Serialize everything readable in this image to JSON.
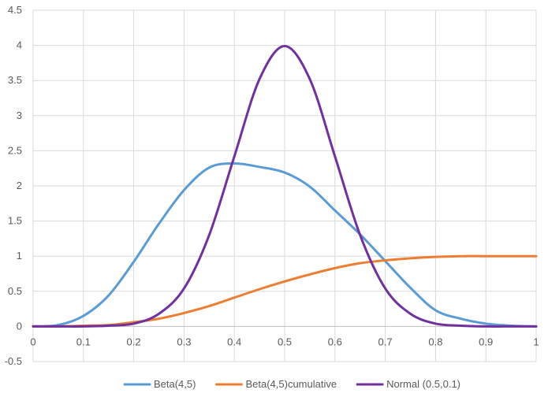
{
  "chart_data": {
    "type": "line",
    "title": "",
    "xlabel": "",
    "ylabel": "",
    "xlim": [
      0,
      1
    ],
    "ylim": [
      -0.5,
      4.5
    ],
    "x_ticks": [
      0,
      0.1,
      0.2,
      0.3,
      0.4,
      0.5,
      0.6,
      0.7,
      0.8,
      0.9,
      1
    ],
    "x_tick_labels": [
      "0",
      "0.1",
      "0.2",
      "0.3",
      "0.4",
      "0.5",
      "0.6",
      "0.7",
      "0.8",
      "0.9",
      "1"
    ],
    "y_ticks": [
      -0.5,
      0,
      0.5,
      1,
      1.5,
      2,
      2.5,
      3,
      3.5,
      4,
      4.5
    ],
    "y_tick_labels": [
      "-0.5",
      "0",
      "0.5",
      "1",
      "1.5",
      "2",
      "2.5",
      "3",
      "3.5",
      "4",
      "4.5"
    ],
    "grid": true,
    "legend_position": "bottom",
    "x": [
      0,
      0.05,
      0.1,
      0.15,
      0.2,
      0.25,
      0.3,
      0.35,
      0.4,
      0.45,
      0.5,
      0.55,
      0.6,
      0.65,
      0.7,
      0.75,
      0.8,
      0.85,
      0.9,
      0.95,
      1
    ],
    "series": [
      {
        "name": "Beta(4,5)",
        "color": "#5b9bd5",
        "values": [
          0,
          0.02,
          0.15,
          0.44,
          0.92,
          1.46,
          1.94,
          2.26,
          2.32,
          2.27,
          2.19,
          1.99,
          1.65,
          1.31,
          0.93,
          0.55,
          0.23,
          0.11,
          0.04,
          0.01,
          0
        ]
      },
      {
        "name": "Beta(4,5)cumulative",
        "color": "#ed7d31",
        "values": [
          0,
          0,
          0.01,
          0.02,
          0.06,
          0.11,
          0.19,
          0.29,
          0.41,
          0.53,
          0.64,
          0.74,
          0.83,
          0.9,
          0.94,
          0.97,
          0.99,
          1,
          1,
          1,
          1
        ]
      },
      {
        "name": "Normal (0.5,0.1)",
        "color": "#7030a0",
        "values": [
          0,
          0,
          0,
          0.01,
          0.04,
          0.18,
          0.54,
          1.3,
          2.42,
          3.52,
          3.99,
          3.52,
          2.42,
          1.3,
          0.54,
          0.18,
          0.04,
          0.01,
          0,
          0,
          0
        ]
      }
    ]
  }
}
